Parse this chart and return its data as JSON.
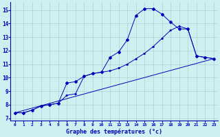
{
  "title": "Graphe des températures (°c)",
  "bg_color": "#cff0f0",
  "grid_color": "#aad4d4",
  "line_color": "#0000bb",
  "xlim": [
    -0.5,
    23.5
  ],
  "ylim": [
    6.8,
    15.6
  ],
  "xticks": [
    0,
    1,
    2,
    3,
    4,
    5,
    6,
    7,
    8,
    9,
    10,
    11,
    12,
    13,
    14,
    15,
    16,
    17,
    18,
    19,
    20,
    21,
    22,
    23
  ],
  "yticks": [
    7,
    8,
    9,
    10,
    11,
    12,
    13,
    14,
    15
  ],
  "series1_x": [
    0,
    1,
    2,
    3,
    4,
    5,
    6,
    7,
    8,
    9,
    10,
    11,
    12,
    13,
    14,
    15,
    16,
    17,
    18,
    19,
    20,
    21,
    22,
    23
  ],
  "series1_y": [
    7.4,
    7.4,
    7.6,
    7.9,
    8.0,
    8.1,
    9.6,
    9.7,
    10.1,
    10.3,
    10.4,
    11.5,
    11.9,
    12.8,
    14.6,
    15.1,
    15.1,
    14.7,
    14.1,
    13.6,
    13.6,
    11.6,
    11.5,
    11.4
  ],
  "series2_x": [
    0,
    1,
    2,
    3,
    4,
    5,
    6,
    7,
    8,
    9,
    10,
    11,
    12,
    13,
    14,
    15,
    16,
    17,
    18,
    19,
    20,
    21,
    22,
    23
  ],
  "series2_y": [
    7.4,
    7.4,
    7.6,
    7.9,
    8.0,
    8.1,
    8.7,
    8.8,
    10.1,
    10.3,
    10.4,
    10.5,
    10.7,
    11.0,
    11.4,
    11.8,
    12.3,
    12.9,
    13.5,
    13.8,
    13.6,
    11.6,
    11.5,
    11.4
  ],
  "series3_x": [
    0,
    23
  ],
  "series3_y": [
    7.4,
    11.4
  ]
}
